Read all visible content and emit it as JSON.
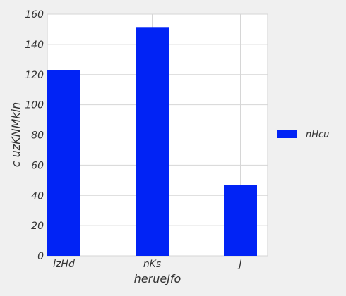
{
  "chart_data": {
    "type": "bar",
    "categories": [
      "lzHd",
      "nKs",
      "J"
    ],
    "series": [
      {
        "name": "nHcu",
        "values": [
          123,
          151,
          47
        ],
        "color": "#0123f5"
      }
    ],
    "xlabel": "herueJfo",
    "ylabel": "c uzKNMkin",
    "ylim": [
      0,
      160
    ],
    "yticks": [
      0,
      20,
      40,
      60,
      80,
      100,
      120,
      140,
      160
    ],
    "grid": true,
    "legend_position": "right"
  }
}
